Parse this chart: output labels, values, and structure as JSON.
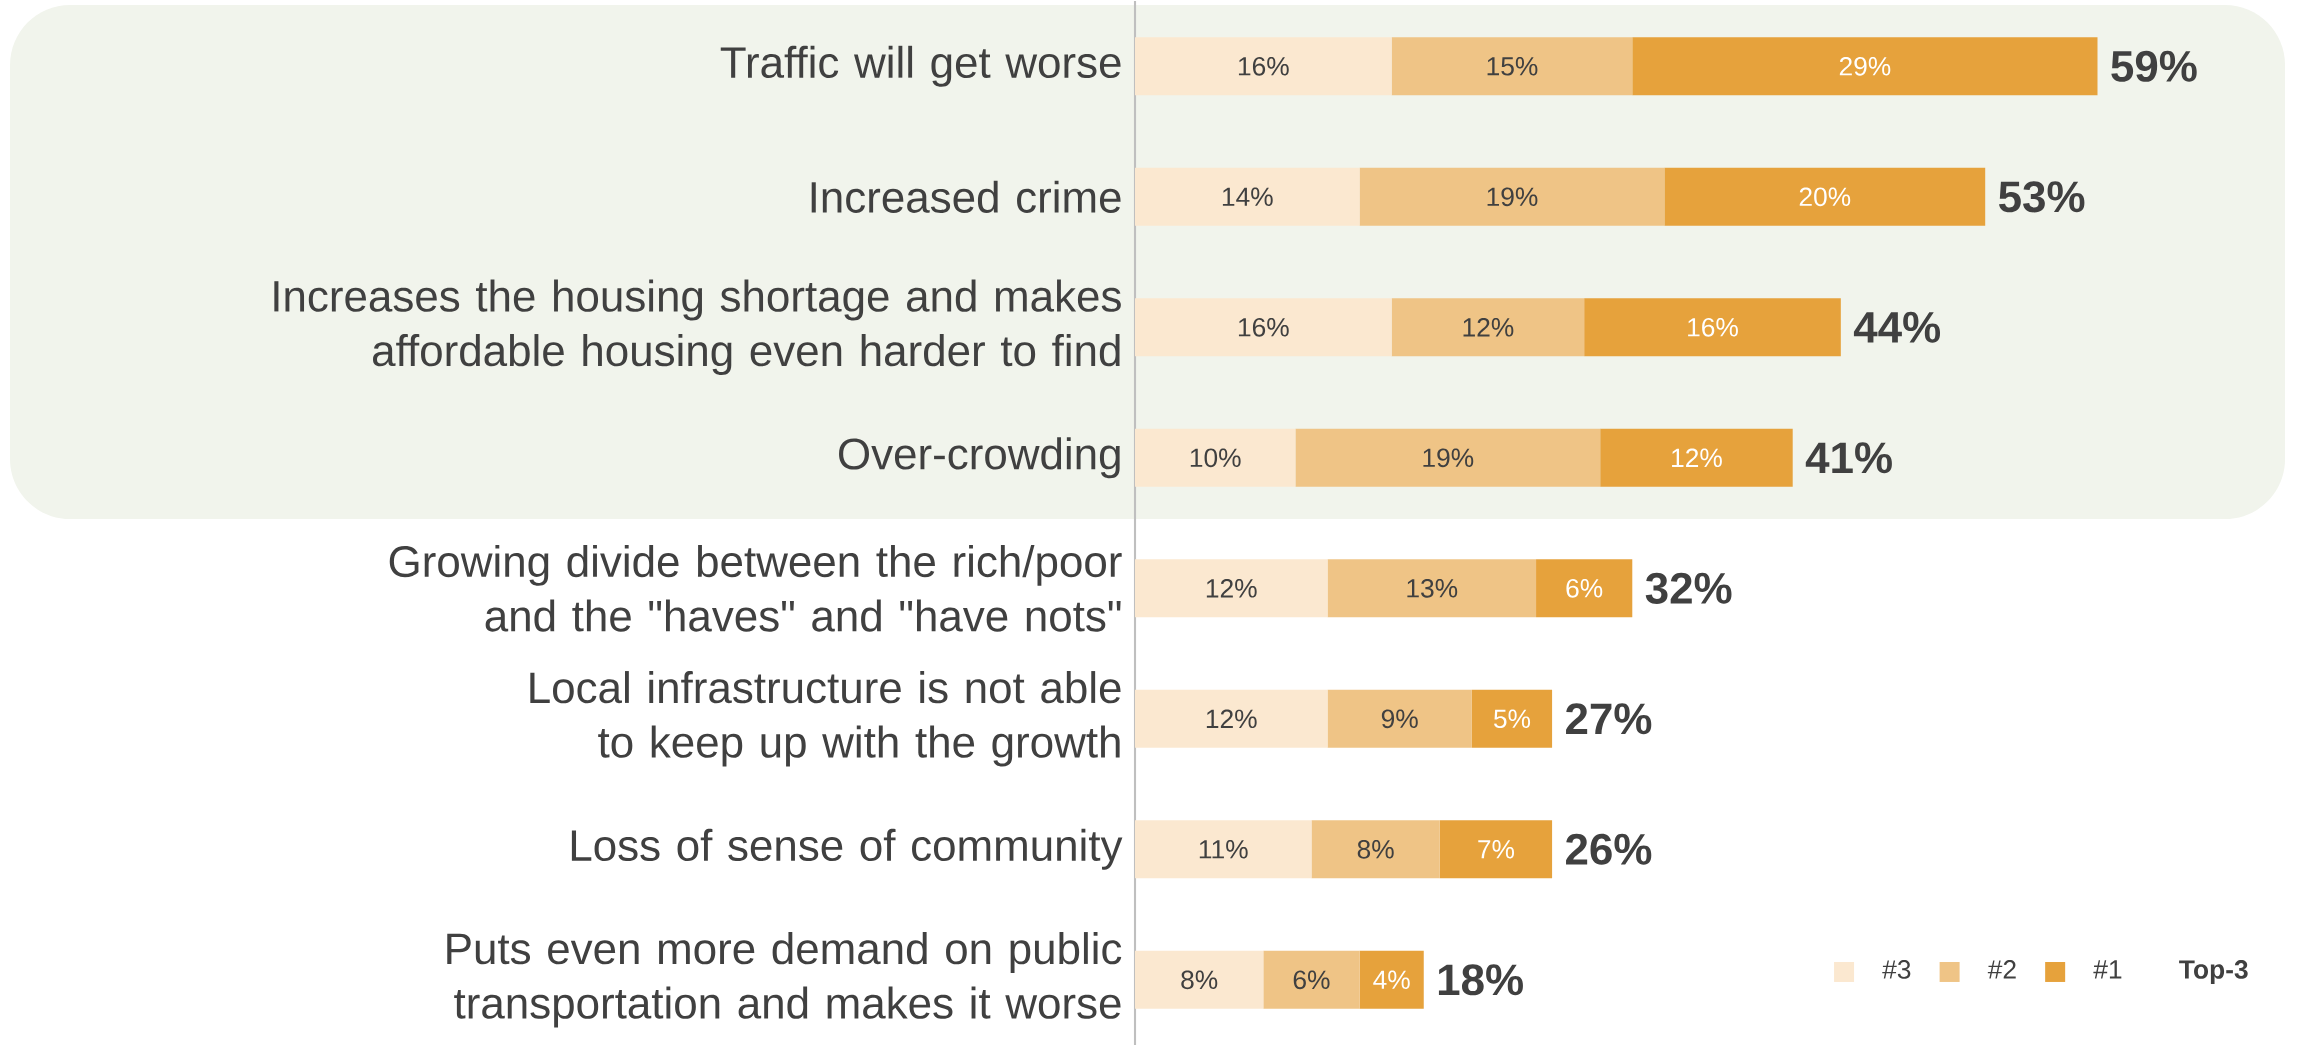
{
  "chart_data": {
    "type": "bar",
    "orientation": "horizontal",
    "stacked": true,
    "categories": [
      "Traffic will get worse",
      "Increased crime",
      "Increases the housing shortage and makes affordable housing even harder to find",
      "Over-crowding",
      "Growing divide between the rich/poor and the \"haves\" and \"have nots\"",
      "Local infrastructure is not able to keep up with the growth",
      "Loss of sense of community",
      "Puts even more demand on public transportation and makes it worse"
    ],
    "series": [
      {
        "name": "#3",
        "color": "#fbe8d0",
        "values": [
          16,
          14,
          16,
          10,
          12,
          12,
          11,
          8
        ],
        "value_labels": [
          "16%",
          "14%",
          "16%",
          "10%",
          "12%",
          "12%",
          "11%",
          "8%"
        ]
      },
      {
        "name": "#2",
        "color": "#efc486",
        "values": [
          15,
          19,
          12,
          19,
          13,
          9,
          8,
          6
        ],
        "value_labels": [
          "15%",
          "19%",
          "12%",
          "19%",
          "13%",
          "9%",
          "8%",
          "6%"
        ]
      },
      {
        "name": "#1",
        "color": "#e6a23c",
        "values": [
          29,
          20,
          16,
          12,
          6,
          5,
          7,
          4
        ],
        "value_labels": [
          "29%",
          "20%",
          "16%",
          "12%",
          "6%",
          "5%",
          "7%",
          "4%"
        ]
      }
    ],
    "totals": [
      "59%",
      "53%",
      "44%",
      "41%",
      "32%",
      "27%",
      "26%",
      "18%"
    ],
    "legend": "bottom right",
    "legend_title": "Top-3",
    "bands": [
      {
        "axis": "y",
        "from": "Traffic will get worse",
        "to": "Over-crowding",
        "color": "#f1f4ec"
      }
    ]
  }
}
